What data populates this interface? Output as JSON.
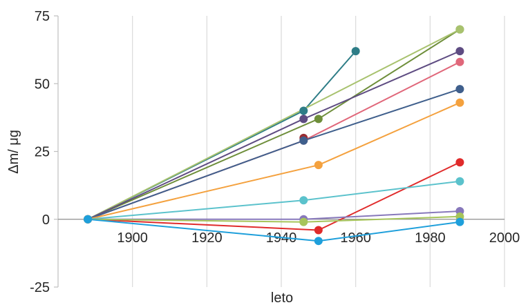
{
  "chart_data": {
    "type": "line",
    "title": "",
    "xlabel": "leto",
    "ylabel": "Δm/ μg",
    "xlim": [
      1880,
      2000
    ],
    "ylim": [
      -25,
      75
    ],
    "x_ticks": [
      1900,
      1920,
      1940,
      1960,
      1980,
      2000
    ],
    "y_ticks": [
      75,
      50,
      25,
      0,
      -25
    ],
    "grid": "vertical",
    "legend": "none",
    "series": [
      {
        "color": "#2E7D87",
        "points": [
          [
            1888,
            0
          ],
          [
            1946,
            40
          ],
          [
            1960,
            62
          ]
        ]
      },
      {
        "color": "#6E8E3A",
        "points": [
          [
            1888,
            0
          ],
          [
            1950,
            37
          ],
          [
            1988,
            70
          ]
        ]
      },
      {
        "color": "#A8C26E",
        "points": [
          [
            1888,
            0
          ],
          [
            1988,
            70
          ]
        ]
      },
      {
        "color": "#5E4C82",
        "points": [
          [
            1888,
            0
          ],
          [
            1946,
            37
          ],
          [
            1988,
            62
          ]
        ]
      },
      {
        "color": "#E0677A",
        "points": [
          [
            1888,
            0
          ],
          [
            1946,
            29
          ],
          [
            1988,
            58
          ]
        ]
      },
      {
        "color": "#9A2D33",
        "points": [
          [
            1946,
            30
          ]
        ]
      },
      {
        "color": "#3F5F8C",
        "points": [
          [
            1888,
            0
          ],
          [
            1946,
            29
          ],
          [
            1988,
            48
          ]
        ]
      },
      {
        "color": "#F4A13E",
        "points": [
          [
            1888,
            0
          ],
          [
            1950,
            20
          ],
          [
            1988,
            43
          ]
        ]
      },
      {
        "color": "#E02B2B",
        "points": [
          [
            1888,
            0
          ],
          [
            1950,
            -4
          ],
          [
            1988,
            21
          ]
        ]
      },
      {
        "color": "#5BC2CC",
        "points": [
          [
            1888,
            0
          ],
          [
            1946,
            7
          ],
          [
            1988,
            14
          ]
        ]
      },
      {
        "color": "#8778BB",
        "points": [
          [
            1888,
            0
          ],
          [
            1946,
            0
          ],
          [
            1988,
            3
          ]
        ]
      },
      {
        "color": "#A6C45A",
        "points": [
          [
            1888,
            0
          ],
          [
            1946,
            -1
          ],
          [
            1988,
            1
          ]
        ]
      },
      {
        "color": "#1E9FDB",
        "points": [
          [
            1888,
            0
          ],
          [
            1950,
            -8
          ],
          [
            1988,
            -1
          ]
        ]
      }
    ]
  }
}
